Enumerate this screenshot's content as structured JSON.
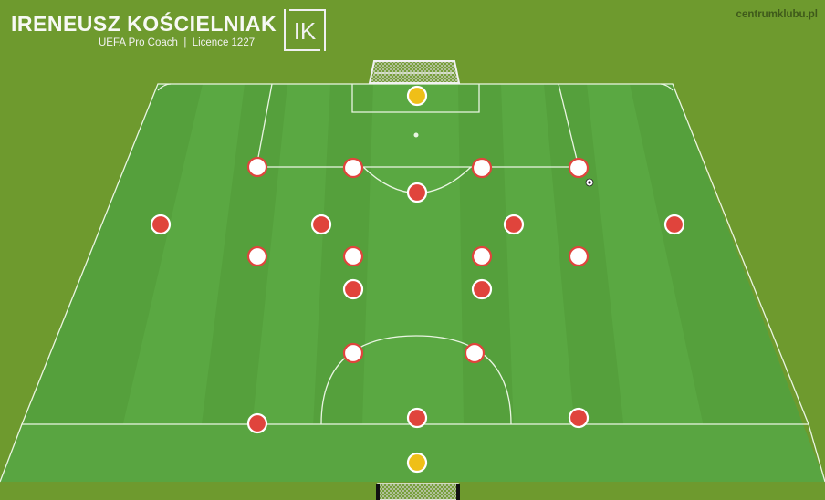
{
  "header": {
    "coach_name": "IRENEUSZ KOŚCIELNIAK",
    "coach_subtitle": "UEFA Pro Coach  |  Licence 1227",
    "logo": {
      "icon": "ik-monogram-logo",
      "letters": "IK"
    },
    "website": "centrumklubu.pl"
  },
  "colors": {
    "grass_outer": "#6e9a2e",
    "pitch_stripe_light": "#5fad45",
    "pitch_stripe_dark": "#55a03d",
    "line": "#e9f5e2",
    "player_red": "#e0443c",
    "player_white": "#ffffff",
    "goalkeeper": "#efbf18"
  },
  "icons": {
    "ball": "soccer-ball-icon",
    "goal_top": "goal-net-icon",
    "goal_bottom": "goal-net-icon"
  },
  "players": [
    {
      "id": "gk-top",
      "color": "yellow"
    },
    {
      "id": "gk-bottom",
      "color": "yellow"
    },
    {
      "id": "p-01",
      "color": "white"
    },
    {
      "id": "p-02",
      "color": "white"
    },
    {
      "id": "p-03",
      "color": "white"
    },
    {
      "id": "p-04",
      "color": "white"
    },
    {
      "id": "p-05",
      "color": "red"
    },
    {
      "id": "p-06",
      "color": "red"
    },
    {
      "id": "p-07",
      "color": "red"
    },
    {
      "id": "p-08",
      "color": "red"
    },
    {
      "id": "p-09",
      "color": "red"
    },
    {
      "id": "p-10",
      "color": "white"
    },
    {
      "id": "p-11",
      "color": "white"
    },
    {
      "id": "p-12",
      "color": "white"
    },
    {
      "id": "p-13",
      "color": "white"
    },
    {
      "id": "p-14",
      "color": "red"
    },
    {
      "id": "p-15",
      "color": "red"
    },
    {
      "id": "p-16",
      "color": "white"
    },
    {
      "id": "p-17",
      "color": "white"
    },
    {
      "id": "p-18",
      "color": "red"
    },
    {
      "id": "p-19",
      "color": "red"
    },
    {
      "id": "p-20",
      "color": "red"
    }
  ]
}
